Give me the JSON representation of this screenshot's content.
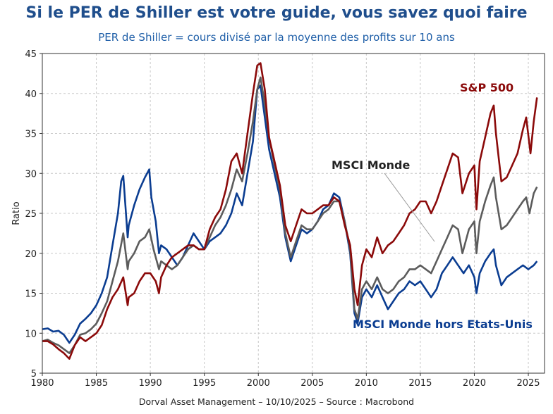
{
  "title": "Si le PER de Shiller est votre guide, vous savez quoi faire",
  "subtitle": "PER de Shiller = cours divisé par la moyenne des profits sur 10 ans",
  "footer": "Dorval Asset Management – 10/10/2025 –   Source : Macrobond",
  "chart_data": {
    "type": "line",
    "title": "Si le PER de Shiller est votre guide, vous savez quoi faire",
    "ylabel": "Ratio",
    "xlabel": "",
    "xlim": [
      1980,
      2026.5
    ],
    "ylim": [
      5,
      45
    ],
    "grid": true,
    "xticks": [
      1980,
      1985,
      1990,
      1995,
      2000,
      2005,
      2010,
      2015,
      2020,
      2025
    ],
    "yticks": [
      5,
      10,
      15,
      20,
      25,
      30,
      35,
      40,
      45
    ],
    "series": [
      {
        "name": "MSCI Monde hors Etats-Unis",
        "color": "#0b3d91",
        "points": [
          [
            1980,
            10.5
          ],
          [
            1980.5,
            10.6
          ],
          [
            1981,
            10.2
          ],
          [
            1981.5,
            10.3
          ],
          [
            1982,
            9.8
          ],
          [
            1982.5,
            8.8
          ],
          [
            1983,
            9.8
          ],
          [
            1983.5,
            11.2
          ],
          [
            1984,
            11.8
          ],
          [
            1984.5,
            12.5
          ],
          [
            1985,
            13.5
          ],
          [
            1985.5,
            15.0
          ],
          [
            1986,
            17.0
          ],
          [
            1986.5,
            21.0
          ],
          [
            1987,
            25.0
          ],
          [
            1987.3,
            29.0
          ],
          [
            1987.5,
            29.7
          ],
          [
            1987.9,
            22.0
          ],
          [
            1988,
            23.5
          ],
          [
            1988.5,
            26.0
          ],
          [
            1989,
            28.0
          ],
          [
            1989.5,
            29.5
          ],
          [
            1989.9,
            30.5
          ],
          [
            1990.1,
            27.0
          ],
          [
            1990.5,
            24.0
          ],
          [
            1990.8,
            20.0
          ],
          [
            1991,
            21.0
          ],
          [
            1991.5,
            20.5
          ],
          [
            1992,
            19.5
          ],
          [
            1992.5,
            18.5
          ],
          [
            1993,
            19.5
          ],
          [
            1993.5,
            21.0
          ],
          [
            1994,
            22.5
          ],
          [
            1994.5,
            21.5
          ],
          [
            1995,
            20.5
          ],
          [
            1995.5,
            21.5
          ],
          [
            1996,
            22.0
          ],
          [
            1996.5,
            22.5
          ],
          [
            1997,
            23.5
          ],
          [
            1997.5,
            25.0
          ],
          [
            1998,
            27.5
          ],
          [
            1998.5,
            26.0
          ],
          [
            1999,
            30.0
          ],
          [
            1999.5,
            34.0
          ],
          [
            1999.9,
            40.5
          ],
          [
            2000.2,
            41.0
          ],
          [
            2000.5,
            38.0
          ],
          [
            2001,
            33.0
          ],
          [
            2001.5,
            30.0
          ],
          [
            2002,
            27.0
          ],
          [
            2002.5,
            22.0
          ],
          [
            2003,
            19.0
          ],
          [
            2003.5,
            21.0
          ],
          [
            2004,
            23.0
          ],
          [
            2004.5,
            22.5
          ],
          [
            2005,
            23.0
          ],
          [
            2005.5,
            24.0
          ],
          [
            2006,
            25.5
          ],
          [
            2006.5,
            26.0
          ],
          [
            2007,
            27.5
          ],
          [
            2007.5,
            27.0
          ],
          [
            2008,
            24.0
          ],
          [
            2008.5,
            20.0
          ],
          [
            2008.9,
            12.5
          ],
          [
            2009.2,
            11.3
          ],
          [
            2009.6,
            14.5
          ],
          [
            2010,
            15.5
          ],
          [
            2010.5,
            14.5
          ],
          [
            2011,
            16.0
          ],
          [
            2011.5,
            14.5
          ],
          [
            2012,
            13.0
          ],
          [
            2012.5,
            14.0
          ],
          [
            2013,
            15.0
          ],
          [
            2013.5,
            15.5
          ],
          [
            2014,
            16.5
          ],
          [
            2014.5,
            16.0
          ],
          [
            2015,
            16.5
          ],
          [
            2015.5,
            15.5
          ],
          [
            2016,
            14.5
          ],
          [
            2016.5,
            15.5
          ],
          [
            2017,
            17.5
          ],
          [
            2017.5,
            18.5
          ],
          [
            2018,
            19.5
          ],
          [
            2018.5,
            18.5
          ],
          [
            2019,
            17.5
          ],
          [
            2019.5,
            18.5
          ],
          [
            2020,
            17.0
          ],
          [
            2020.2,
            15.0
          ],
          [
            2020.5,
            17.5
          ],
          [
            2021,
            19.0
          ],
          [
            2021.5,
            20.0
          ],
          [
            2021.8,
            20.5
          ],
          [
            2022,
            18.5
          ],
          [
            2022.5,
            16.0
          ],
          [
            2023,
            17.0
          ],
          [
            2023.5,
            17.5
          ],
          [
            2024,
            18.0
          ],
          [
            2024.5,
            18.5
          ],
          [
            2025,
            18.0
          ],
          [
            2025.5,
            18.5
          ],
          [
            2025.8,
            19.0
          ]
        ]
      },
      {
        "name": "MSCI Monde",
        "color": "#5c5c5c",
        "points": [
          [
            1980,
            9.0
          ],
          [
            1980.5,
            9.2
          ],
          [
            1981,
            8.8
          ],
          [
            1981.5,
            8.5
          ],
          [
            1982,
            8.0
          ],
          [
            1982.5,
            7.5
          ],
          [
            1983,
            8.5
          ],
          [
            1983.5,
            9.8
          ],
          [
            1984,
            10.0
          ],
          [
            1984.5,
            10.5
          ],
          [
            1985,
            11.2
          ],
          [
            1985.5,
            12.5
          ],
          [
            1986,
            14.0
          ],
          [
            1986.5,
            16.5
          ],
          [
            1987,
            19.0
          ],
          [
            1987.5,
            22.5
          ],
          [
            1987.9,
            18.0
          ],
          [
            1988,
            19.0
          ],
          [
            1988.5,
            20.0
          ],
          [
            1989,
            21.5
          ],
          [
            1989.5,
            22.0
          ],
          [
            1989.9,
            23.0
          ],
          [
            1990.3,
            20.5
          ],
          [
            1990.8,
            18.0
          ],
          [
            1991,
            19.0
          ],
          [
            1991.5,
            18.5
          ],
          [
            1992,
            18.0
          ],
          [
            1992.5,
            18.5
          ],
          [
            1993,
            19.5
          ],
          [
            1993.5,
            20.5
          ],
          [
            1994,
            21.0
          ],
          [
            1994.5,
            20.5
          ],
          [
            1995,
            20.5
          ],
          [
            1995.5,
            22.0
          ],
          [
            1996,
            23.5
          ],
          [
            1996.5,
            24.5
          ],
          [
            1997,
            26.0
          ],
          [
            1997.5,
            28.0
          ],
          [
            1998,
            30.5
          ],
          [
            1998.5,
            29.0
          ],
          [
            1999,
            32.5
          ],
          [
            1999.5,
            36.5
          ],
          [
            1999.9,
            40.5
          ],
          [
            2000.2,
            42.0
          ],
          [
            2000.5,
            39.5
          ],
          [
            2001,
            34.5
          ],
          [
            2001.5,
            31.0
          ],
          [
            2002,
            28.0
          ],
          [
            2002.5,
            22.5
          ],
          [
            2003,
            19.5
          ],
          [
            2003.5,
            21.5
          ],
          [
            2004,
            23.5
          ],
          [
            2004.5,
            23.0
          ],
          [
            2005,
            23.0
          ],
          [
            2005.5,
            24.0
          ],
          [
            2006,
            25.0
          ],
          [
            2006.5,
            25.5
          ],
          [
            2007,
            26.5
          ],
          [
            2007.5,
            26.5
          ],
          [
            2008,
            24.0
          ],
          [
            2008.5,
            20.5
          ],
          [
            2008.9,
            13.0
          ],
          [
            2009.2,
            11.8
          ],
          [
            2009.6,
            15.5
          ],
          [
            2010,
            16.5
          ],
          [
            2010.5,
            15.5
          ],
          [
            2011,
            17.0
          ],
          [
            2011.5,
            15.5
          ],
          [
            2012,
            15.0
          ],
          [
            2012.5,
            15.5
          ],
          [
            2013,
            16.5
          ],
          [
            2013.5,
            17.0
          ],
          [
            2014,
            18.0
          ],
          [
            2014.5,
            18.0
          ],
          [
            2015,
            18.5
          ],
          [
            2015.5,
            18.0
          ],
          [
            2016,
            17.5
          ],
          [
            2016.5,
            19.0
          ],
          [
            2017,
            20.5
          ],
          [
            2017.5,
            22.0
          ],
          [
            2018,
            23.5
          ],
          [
            2018.5,
            23.0
          ],
          [
            2018.9,
            20.0
          ],
          [
            2019.5,
            23.0
          ],
          [
            2020,
            24.0
          ],
          [
            2020.2,
            20.0
          ],
          [
            2020.5,
            24.0
          ],
          [
            2021,
            26.5
          ],
          [
            2021.5,
            28.5
          ],
          [
            2021.8,
            29.5
          ],
          [
            2022,
            27.0
          ],
          [
            2022.5,
            23.0
          ],
          [
            2023,
            23.5
          ],
          [
            2023.5,
            24.5
          ],
          [
            2024,
            25.5
          ],
          [
            2024.5,
            26.5
          ],
          [
            2024.8,
            27.0
          ],
          [
            2025.1,
            25.0
          ],
          [
            2025.5,
            27.5
          ],
          [
            2025.8,
            28.3
          ]
        ]
      },
      {
        "name": "S&P 500",
        "color": "#8b0a0a",
        "points": [
          [
            1980,
            9.0
          ],
          [
            1980.5,
            9.0
          ],
          [
            1981,
            8.6
          ],
          [
            1981.5,
            8.0
          ],
          [
            1982,
            7.5
          ],
          [
            1982.5,
            6.8
          ],
          [
            1983,
            8.5
          ],
          [
            1983.5,
            9.5
          ],
          [
            1984,
            9.0
          ],
          [
            1984.5,
            9.5
          ],
          [
            1985,
            10.0
          ],
          [
            1985.5,
            11.0
          ],
          [
            1986,
            13.0
          ],
          [
            1986.5,
            14.5
          ],
          [
            1987,
            15.5
          ],
          [
            1987.5,
            17.0
          ],
          [
            1987.9,
            13.5
          ],
          [
            1988,
            14.5
          ],
          [
            1988.5,
            15.0
          ],
          [
            1989,
            16.5
          ],
          [
            1989.5,
            17.5
          ],
          [
            1990,
            17.5
          ],
          [
            1990.5,
            16.5
          ],
          [
            1990.8,
            15.0
          ],
          [
            1991,
            17.0
          ],
          [
            1991.5,
            18.5
          ],
          [
            1992,
            19.5
          ],
          [
            1992.5,
            20.0
          ],
          [
            1993,
            20.5
          ],
          [
            1993.5,
            21.0
          ],
          [
            1994,
            21.0
          ],
          [
            1994.5,
            20.5
          ],
          [
            1995,
            20.5
          ],
          [
            1995.5,
            23.0
          ],
          [
            1996,
            24.5
          ],
          [
            1996.5,
            25.5
          ],
          [
            1997,
            28.0
          ],
          [
            1997.5,
            31.5
          ],
          [
            1998,
            32.5
          ],
          [
            1998.5,
            30.0
          ],
          [
            1999,
            35.0
          ],
          [
            1999.5,
            40.0
          ],
          [
            1999.9,
            43.5
          ],
          [
            2000.2,
            43.8
          ],
          [
            2000.6,
            40.5
          ],
          [
            2001,
            34.5
          ],
          [
            2001.5,
            31.5
          ],
          [
            2002,
            28.5
          ],
          [
            2002.5,
            23.5
          ],
          [
            2003,
            21.5
          ],
          [
            2003.5,
            23.5
          ],
          [
            2004,
            25.5
          ],
          [
            2004.5,
            25.0
          ],
          [
            2005,
            25.0
          ],
          [
            2005.5,
            25.5
          ],
          [
            2006,
            26.0
          ],
          [
            2006.5,
            26.0
          ],
          [
            2007,
            27.0
          ],
          [
            2007.5,
            26.5
          ],
          [
            2008,
            23.5
          ],
          [
            2008.5,
            21.0
          ],
          [
            2008.9,
            15.5
          ],
          [
            2009.2,
            13.5
          ],
          [
            2009.6,
            18.5
          ],
          [
            2010,
            20.5
          ],
          [
            2010.5,
            19.5
          ],
          [
            2011,
            22.0
          ],
          [
            2011.5,
            20.0
          ],
          [
            2012,
            21.0
          ],
          [
            2012.5,
            21.5
          ],
          [
            2013,
            22.5
          ],
          [
            2013.5,
            23.5
          ],
          [
            2014,
            25.0
          ],
          [
            2014.5,
            25.5
          ],
          [
            2015,
            26.5
          ],
          [
            2015.5,
            26.5
          ],
          [
            2016,
            25.0
          ],
          [
            2016.5,
            26.5
          ],
          [
            2017,
            28.5
          ],
          [
            2017.5,
            30.5
          ],
          [
            2018,
            32.5
          ],
          [
            2018.5,
            32.0
          ],
          [
            2018.9,
            27.5
          ],
          [
            2019.5,
            30.0
          ],
          [
            2020,
            31.0
          ],
          [
            2020.2,
            25.5
          ],
          [
            2020.5,
            31.5
          ],
          [
            2021,
            34.5
          ],
          [
            2021.5,
            37.5
          ],
          [
            2021.8,
            38.5
          ],
          [
            2022,
            35.0
          ],
          [
            2022.5,
            29.0
          ],
          [
            2023,
            29.5
          ],
          [
            2023.5,
            31.0
          ],
          [
            2024,
            32.5
          ],
          [
            2024.5,
            35.5
          ],
          [
            2024.8,
            37.0
          ],
          [
            2025.2,
            32.5
          ],
          [
            2025.5,
            36.5
          ],
          [
            2025.8,
            39.5
          ]
        ]
      }
    ],
    "annotations": [
      {
        "text": "S&P 500",
        "color": "#8b0a0a"
      },
      {
        "text": "MSCI Monde",
        "color": "#222222"
      },
      {
        "text": "MSCI Monde hors Etats-Unis",
        "color": "#0b3d91"
      }
    ]
  }
}
